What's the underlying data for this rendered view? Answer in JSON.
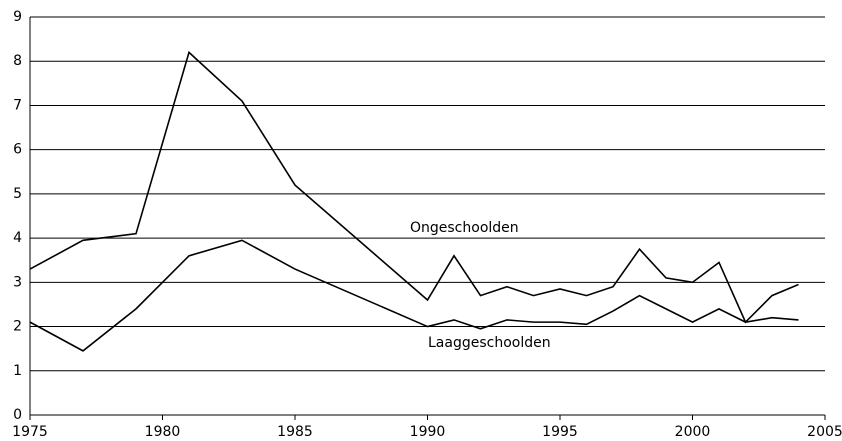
{
  "chart_data": {
    "type": "line",
    "x": [
      1975,
      1977,
      1979,
      1981,
      1983,
      1985,
      1990,
      1991,
      1992,
      1993,
      1994,
      1995,
      1996,
      1997,
      1998,
      1999,
      2000,
      2001,
      2002,
      2003,
      2004
    ],
    "series": [
      {
        "name": "Ongeschoolden",
        "color": "#000000",
        "values": [
          3.3,
          3.95,
          4.1,
          8.2,
          7.1,
          5.2,
          2.6,
          3.6,
          2.7,
          2.9,
          2.7,
          2.85,
          2.7,
          2.9,
          3.75,
          3.1,
          3.0,
          3.45,
          2.1,
          2.7,
          2.95
        ]
      },
      {
        "name": "Laaggeschoolden",
        "color": "#000000",
        "values": [
          2.1,
          1.45,
          2.4,
          3.6,
          3.95,
          3.3,
          2.0,
          2.15,
          1.95,
          2.15,
          2.1,
          2.1,
          2.05,
          2.35,
          2.7,
          2.4,
          2.1,
          2.4,
          2.1,
          2.2,
          2.15
        ]
      }
    ],
    "xlim": [
      1975,
      2005
    ],
    "xticks": [
      1975,
      1980,
      1985,
      1990,
      1995,
      2000,
      2005
    ],
    "ylim": [
      0,
      9
    ],
    "yticks": [
      0,
      1,
      2,
      3,
      4,
      5,
      6,
      7,
      8,
      9
    ],
    "grid": true
  }
}
